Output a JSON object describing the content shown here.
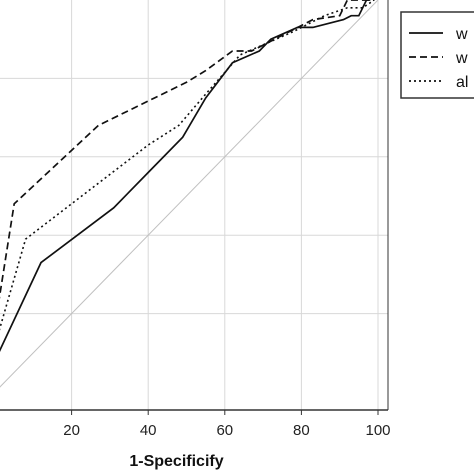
{
  "chart_data": {
    "type": "line",
    "title": "",
    "xlabel": "1-Specificify",
    "ylabel": "",
    "xlim": [
      0,
      100
    ],
    "ylim": [
      0,
      100
    ],
    "x_ticks": [
      20,
      40,
      60,
      80,
      100
    ],
    "grid": true,
    "legend_placement": "top-right",
    "legend_entries": [
      "w",
      "w",
      "al"
    ],
    "series": [
      {
        "style": "solid",
        "x": [
          0,
          12,
          31,
          40,
          49,
          55,
          62,
          69,
          72,
          79,
          83,
          91,
          93,
          95,
          97,
          98
        ],
        "y": [
          8,
          33,
          47,
          56,
          65,
          75,
          84,
          87,
          90,
          93,
          93,
          95,
          96,
          96,
          100,
          100
        ]
      },
      {
        "style": "dashed",
        "x": [
          0,
          5,
          27,
          50,
          55,
          62,
          67,
          77,
          83,
          90,
          92,
          97,
          99
        ],
        "y": [
          17,
          48,
          68,
          79,
          82,
          87,
          87,
          92,
          95,
          96,
          100,
          100,
          100
        ]
      },
      {
        "style": "dotted",
        "x": [
          0,
          8,
          40,
          48,
          55,
          64,
          78,
          86,
          92,
          96,
          99
        ],
        "y": [
          12,
          39,
          63,
          68,
          76,
          86,
          92,
          96,
          98,
          98,
          100
        ]
      },
      {
        "style": "reference",
        "x": [
          0,
          100
        ],
        "y": [
          0,
          100
        ]
      }
    ]
  }
}
